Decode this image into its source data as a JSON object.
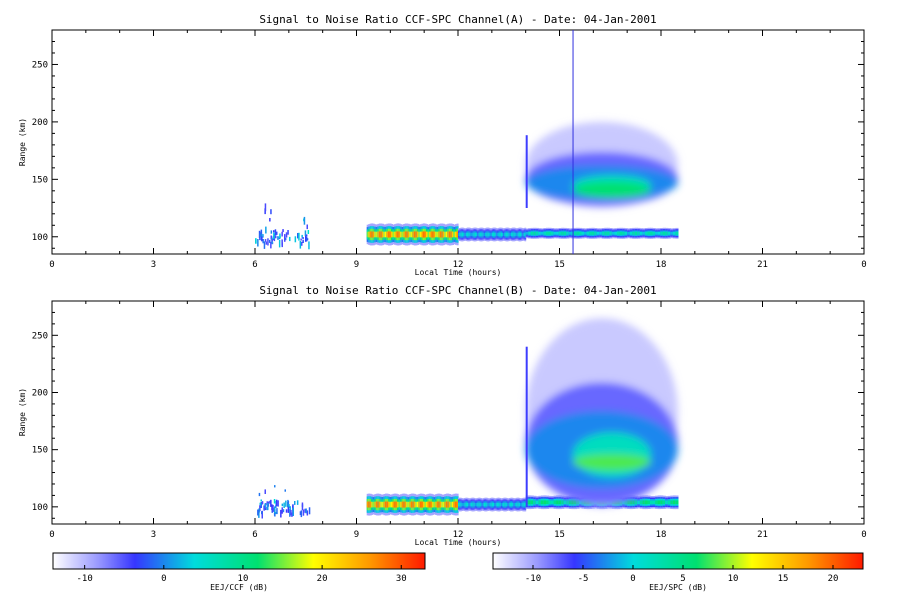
{
  "chart_data": [
    {
      "type": "heatmap",
      "title": "Signal to Noise Ratio CCF-SPC Channel(A) - Date: 04-Jan-2001",
      "xlabel": "Local Time (hours)",
      "ylabel": "Range (km)",
      "xlim": [
        0,
        24
      ],
      "ylim": [
        85,
        280
      ],
      "x_ticks": [
        "0",
        "3",
        "6",
        "9",
        "12",
        "15",
        "18",
        "21",
        "0"
      ],
      "y_ticks": [
        "100",
        "150",
        "200",
        "250"
      ],
      "vertical_marker_x": 15.4,
      "echo_regions": [
        {
          "kind": "spots",
          "x_start": 6.0,
          "x_end": 7.6,
          "y_start": 95,
          "y_end": 128,
          "peak_db": 5
        },
        {
          "kind": "band",
          "x_start": 9.3,
          "x_end": 12.0,
          "y_center": 102,
          "half_width_km": 8,
          "peak_db": 28
        },
        {
          "kind": "band",
          "x_start": 12.0,
          "x_end": 14.0,
          "y_center": 102,
          "half_width_km": 5,
          "peak_db": 5
        },
        {
          "kind": "band",
          "x_start": 14.0,
          "x_end": 18.5,
          "y_center": 103,
          "half_width_km": 4,
          "peak_db": 8
        },
        {
          "kind": "blob",
          "x_start": 14.0,
          "x_end": 18.5,
          "y_start": 125,
          "y_end": 200,
          "y_center": 142,
          "peak_db": 12
        }
      ]
    },
    {
      "type": "heatmap",
      "title": "Signal to Noise Ratio CCF-SPC Channel(B) - Date: 04-Jan-2001",
      "xlabel": "Local Time (hours)",
      "ylabel": "Range (km)",
      "xlim": [
        0,
        24
      ],
      "ylim": [
        85,
        280
      ],
      "x_ticks": [
        "0",
        "3",
        "6",
        "9",
        "12",
        "15",
        "18",
        "21",
        "0"
      ],
      "y_ticks": [
        "100",
        "150",
        "200",
        "250"
      ],
      "echo_regions": [
        {
          "kind": "spots",
          "x_start": 6.0,
          "x_end": 7.6,
          "y_start": 95,
          "y_end": 128,
          "peak_db": 5
        },
        {
          "kind": "band",
          "x_start": 9.3,
          "x_end": 12.0,
          "y_center": 102,
          "half_width_km": 8,
          "peak_db": 28
        },
        {
          "kind": "band",
          "x_start": 12.0,
          "x_end": 14.0,
          "y_center": 102,
          "half_width_km": 5,
          "peak_db": 5
        },
        {
          "kind": "band",
          "x_start": 14.0,
          "x_end": 18.5,
          "y_center": 104,
          "half_width_km": 5,
          "peak_db": 12
        },
        {
          "kind": "blob",
          "x_start": 14.0,
          "x_end": 18.5,
          "y_start": 100,
          "y_end": 265,
          "y_center": 140,
          "peak_db": 14
        }
      ]
    }
  ],
  "colorbars": [
    {
      "label": "EEJ/CCF (dB)",
      "range": [
        -14,
        33
      ],
      "ticks": [
        "-10",
        "0",
        "10",
        "20",
        "30"
      ],
      "tick_values": [
        -10,
        0,
        10,
        20,
        30
      ]
    },
    {
      "label": "EEJ/SPC (dB)",
      "range": [
        -14,
        23
      ],
      "ticks": [
        "-10",
        "-5",
        "0",
        "5",
        "10",
        "15",
        "20"
      ],
      "tick_values": [
        -10,
        -5,
        0,
        5,
        10,
        15,
        20
      ]
    }
  ],
  "colors": {
    "colormap": [
      "#ffffff",
      "#3636ff",
      "#00dcdc",
      "#00e070",
      "#ffff00",
      "#ff9a00",
      "#ff1a00"
    ],
    "marker_line": "#3030e0",
    "axis": "#000000"
  }
}
